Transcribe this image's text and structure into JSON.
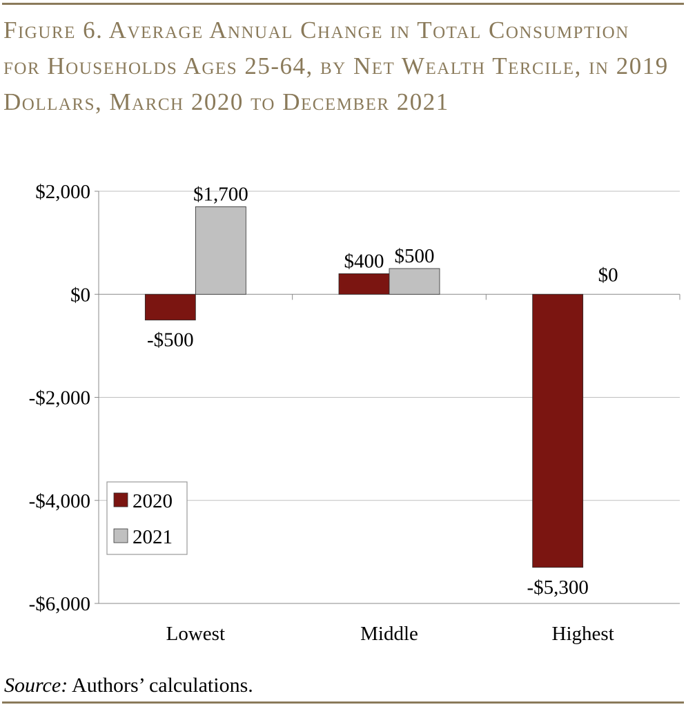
{
  "figure": {
    "title": "Figure 6. Average Annual Change in Total Consumption for Households Ages 25-64, by Net Wealth Tercile, in 2019 Dollars, March 2020 to December 2021",
    "source_label": "Source:",
    "source_text": " Authors’ calculations."
  },
  "colors": {
    "rule": "#8a7a5a",
    "series_2020": "#7b1511",
    "series_2021": "#c0c0c0",
    "grid": "#bfbfbf"
  },
  "chart_data": {
    "type": "bar",
    "categories": [
      "Lowest",
      "Middle",
      "Highest"
    ],
    "series": [
      {
        "name": "2020",
        "values": [
          -500,
          400,
          -5300
        ],
        "labels": [
          "-$500",
          "$400",
          "-$5,300"
        ]
      },
      {
        "name": "2021",
        "values": [
          1700,
          500,
          0
        ],
        "labels": [
          "$1,700",
          "$500",
          "$0"
        ]
      }
    ],
    "ylim": [
      -6000,
      2000
    ],
    "yticks": [
      2000,
      0,
      -2000,
      -4000,
      -6000
    ],
    "ytick_labels": [
      "$2,000",
      "$0",
      "-$2,000",
      "-$4,000",
      "-$6,000"
    ],
    "grid": true,
    "legend": "bottom-left"
  }
}
